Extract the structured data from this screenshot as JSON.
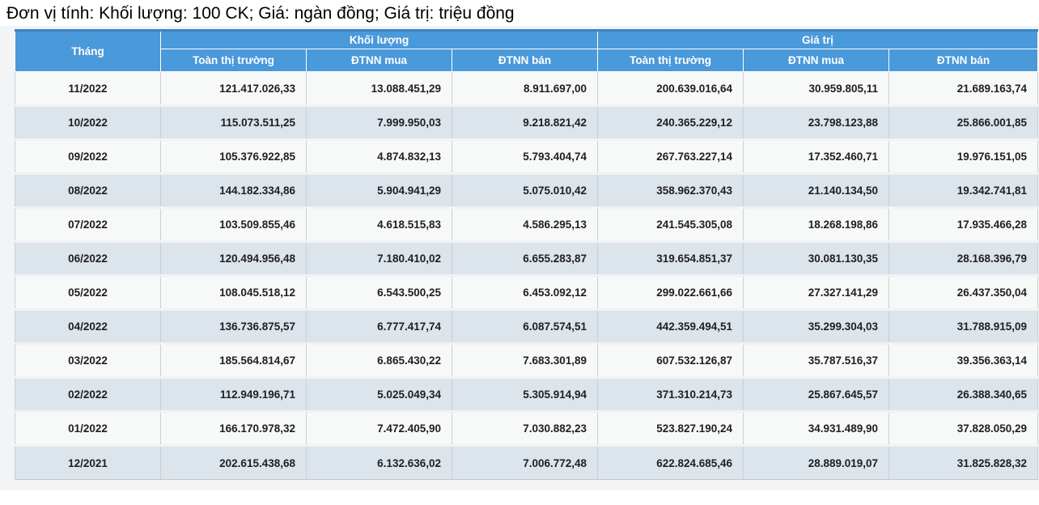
{
  "title": "Đơn vị tính: Khối lượng: 100 CK; Giá: ngàn đồng; Giá trị: triệu đồng",
  "table": {
    "month_header": "Tháng",
    "groups": [
      {
        "label": "Khối lượng",
        "columns": [
          "Toàn thị trường",
          "ĐTNN mua",
          "ĐTNN bán"
        ]
      },
      {
        "label": "Giá trị",
        "columns": [
          "Toàn thị trường",
          "ĐTNN mua",
          "ĐTNN bán"
        ]
      }
    ],
    "rows": [
      {
        "month": "11/2022",
        "values": [
          "121.417.026,33",
          "13.088.451,29",
          "8.911.697,00",
          "200.639.016,64",
          "30.959.805,11",
          "21.689.163,74"
        ]
      },
      {
        "month": "10/2022",
        "values": [
          "115.073.511,25",
          "7.999.950,03",
          "9.218.821,42",
          "240.365.229,12",
          "23.798.123,88",
          "25.866.001,85"
        ]
      },
      {
        "month": "09/2022",
        "values": [
          "105.376.922,85",
          "4.874.832,13",
          "5.793.404,74",
          "267.763.227,14",
          "17.352.460,71",
          "19.976.151,05"
        ]
      },
      {
        "month": "08/2022",
        "values": [
          "144.182.334,86",
          "5.904.941,29",
          "5.075.010,42",
          "358.962.370,43",
          "21.140.134,50",
          "19.342.741,81"
        ]
      },
      {
        "month": "07/2022",
        "values": [
          "103.509.855,46",
          "4.618.515,83",
          "4.586.295,13",
          "241.545.305,08",
          "18.268.198,86",
          "17.935.466,28"
        ]
      },
      {
        "month": "06/2022",
        "values": [
          "120.494.956,48",
          "7.180.410,02",
          "6.655.283,87",
          "319.654.851,37",
          "30.081.130,35",
          "28.168.396,79"
        ]
      },
      {
        "month": "05/2022",
        "values": [
          "108.045.518,12",
          "6.543.500,25",
          "6.453.092,12",
          "299.022.661,66",
          "27.327.141,29",
          "26.437.350,04"
        ]
      },
      {
        "month": "04/2022",
        "values": [
          "136.736.875,57",
          "6.777.417,74",
          "6.087.574,51",
          "442.359.494,51",
          "35.299.304,03",
          "31.788.915,09"
        ]
      },
      {
        "month": "03/2022",
        "values": [
          "185.564.814,67",
          "6.865.430,22",
          "7.683.301,89",
          "607.532.126,87",
          "35.787.516,37",
          "39.356.363,14"
        ]
      },
      {
        "month": "02/2022",
        "values": [
          "112.949.196,71",
          "5.025.049,34",
          "5.305.914,94",
          "371.310.214,73",
          "25.867.645,57",
          "26.388.340,65"
        ]
      },
      {
        "month": "01/2022",
        "values": [
          "166.170.978,32",
          "7.472.405,90",
          "7.030.882,23",
          "523.827.190,24",
          "34.931.489,90",
          "37.828.050,29"
        ]
      },
      {
        "month": "12/2021",
        "values": [
          "202.615.438,68",
          "6.132.636,02",
          "7.006.772,48",
          "622.824.685,46",
          "28.889.019,07",
          "31.825.828,32"
        ]
      }
    ]
  },
  "colors": {
    "header_bg": "#4a99db",
    "header_top_border": "#3b83c4",
    "row_light_bg": "#f7f8f8",
    "row_alt_bg": "#dce4ec",
    "page_strip_bg": "#f3f4f6",
    "text": "#1f1f1f"
  }
}
